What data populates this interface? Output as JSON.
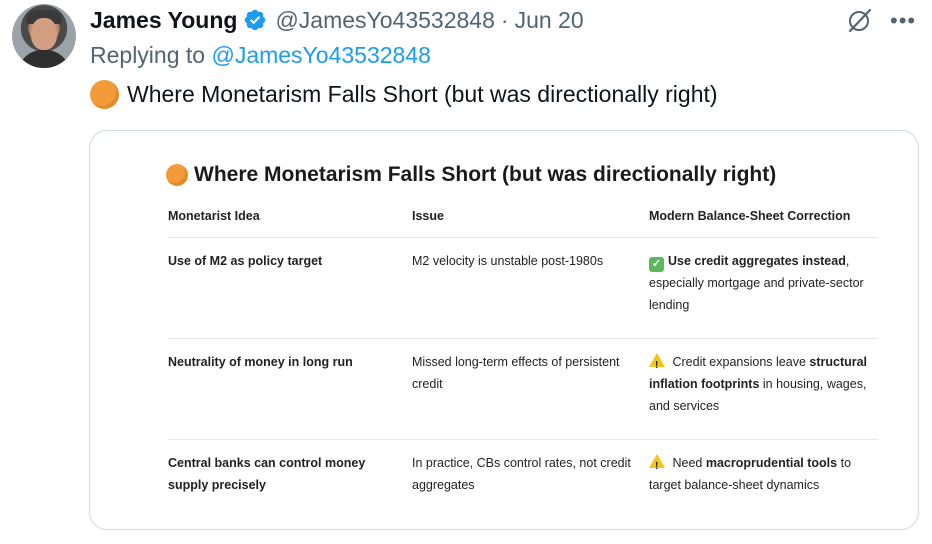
{
  "author": {
    "display_name": "James Young",
    "handle": "@JamesYo43532848",
    "separator": "·",
    "date": "Jun 20",
    "verified_icon": "verified-badge-icon"
  },
  "reply": {
    "prefix": "Replying to",
    "mention": "@JamesYo43532848"
  },
  "tweet": {
    "emoji_icon": "orange-circle-icon",
    "text": "Where Monetarism Falls Short (but was directionally right)"
  },
  "card": {
    "title": "Where Monetarism Falls Short (but was directionally right)",
    "columns": [
      "Monetarist Idea",
      "Issue",
      "Modern Balance-Sheet Correction"
    ],
    "rows": [
      {
        "idea": "Use of M2 as policy target",
        "issue": "M2 velocity is unstable post-1980s",
        "correction_icon": "check-mark-icon",
        "correction_bold": "Use credit aggregates instead",
        "correction_rest": ", especially mortgage and private-sector lending"
      },
      {
        "idea": "Neutrality of money in long run",
        "issue": "Missed long-term effects of persistent credit",
        "correction_icon": "warning-icon",
        "correction_pre": "Credit expansions leave ",
        "correction_bold": "structural inflation footprints",
        "correction_rest": " in housing, wages, and services"
      },
      {
        "idea": "Central banks can control money supply precisely",
        "issue": "In practice, CBs control rates, not credit aggregates",
        "correction_icon": "warning-icon",
        "correction_pre": "Need ",
        "correction_bold": "macroprudential tools",
        "correction_rest": " to target balance-sheet dynamics"
      }
    ]
  },
  "colors": {
    "accent": "#1d9bf0",
    "secondary_text": "#536471",
    "orange_emoji": "#f29b38"
  }
}
